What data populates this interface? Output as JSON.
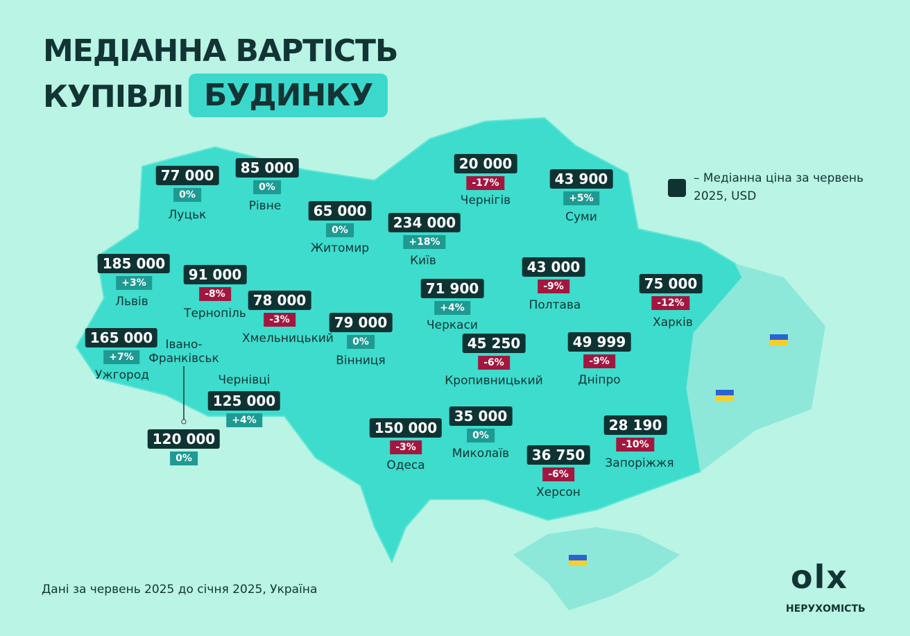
{
  "header": {
    "title_line1": "МЕДІАННА ВАРТІСТЬ",
    "title_line2": "КУПІВЛІ",
    "title_highlight": "БУДИНКУ"
  },
  "legend": {
    "text": "– Медіанна ціна за червень 2025, USD"
  },
  "regions": [
    {
      "name": "Луцьк",
      "price": "77 000",
      "change": "0%"
    },
    {
      "name": "Рівне",
      "price": "85 000",
      "change": "0%"
    },
    {
      "name": "Житомир",
      "price": "65 000",
      "change": "0%"
    },
    {
      "name": "Київ",
      "price": "234 000",
      "change": "+18%"
    },
    {
      "name": "Чернігів",
      "price": "20 000",
      "change": "-17%"
    },
    {
      "name": "Суми",
      "price": "43 900",
      "change": "+5%"
    },
    {
      "name": "Львів",
      "price": "185 000",
      "change": "+3%"
    },
    {
      "name": "Тернопіль",
      "price": "91 000",
      "change": "-8%"
    },
    {
      "name": "Хмельницький",
      "price": "78 000",
      "change": "-3%"
    },
    {
      "name": "Вінниця",
      "price": "79 000",
      "change": "0%"
    },
    {
      "name": "Черкаси",
      "price": "71 900",
      "change": "+4%"
    },
    {
      "name": "Полтава",
      "price": "43 000",
      "change": "-9%"
    },
    {
      "name": "Харків",
      "price": "75 000",
      "change": "-12%"
    },
    {
      "name": "Ужгород",
      "price": "165 000",
      "change": "+7%"
    },
    {
      "name": "Івано-Франківськ",
      "price": "120 000",
      "change": "0%"
    },
    {
      "name": "Чернівці",
      "price": "125 000",
      "change": "+4%"
    },
    {
      "name": "Кропивницький",
      "price": "45 250",
      "change": "-6%"
    },
    {
      "name": "Дніпро",
      "price": "49 999",
      "change": "-9%"
    },
    {
      "name": "Одеса",
      "price": "150 000",
      "change": "-3%"
    },
    {
      "name": "Миколаїв",
      "price": "35 000",
      "change": "0%"
    },
    {
      "name": "Херсон",
      "price": "36 750",
      "change": "-6%"
    },
    {
      "name": "Запоріжжя",
      "price": "28 190",
      "change": "-10%"
    }
  ],
  "footer": {
    "note": "Дані за червень 2025 до січня 2025, Україна",
    "logo": "olx",
    "logo_caption": "НЕРУХОМІСТЬ"
  }
}
